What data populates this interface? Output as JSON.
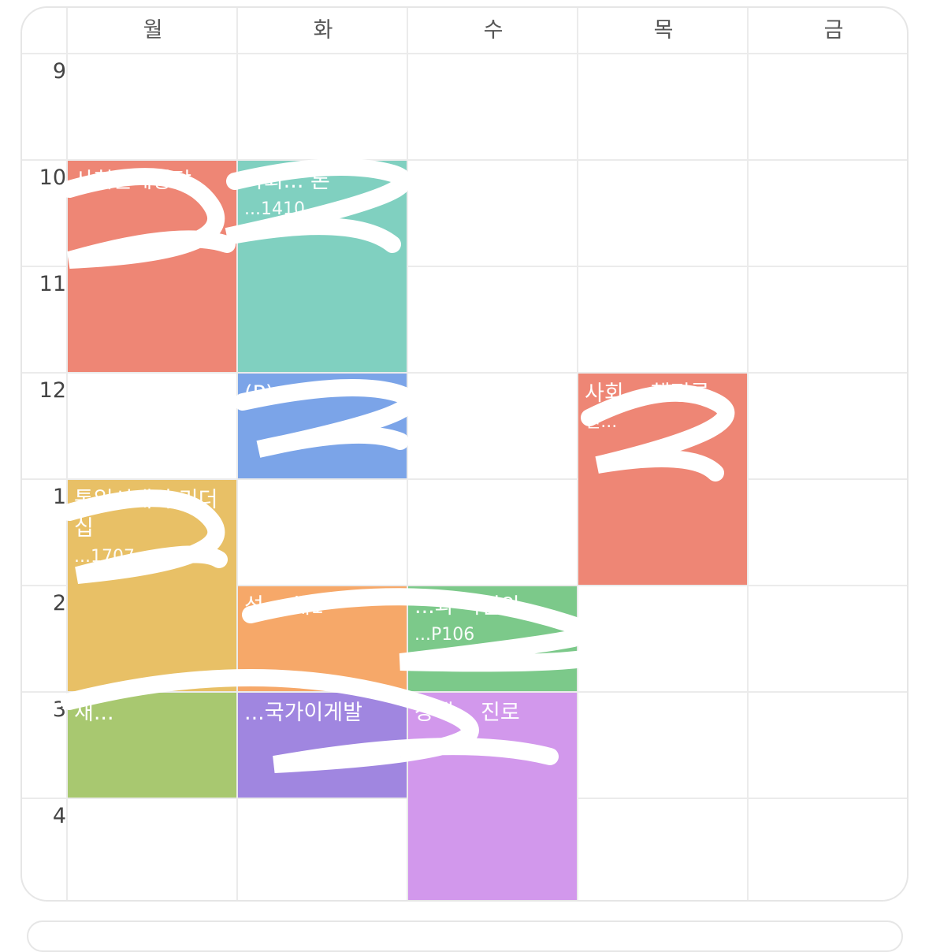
{
  "days": [
    "월",
    "화",
    "수",
    "목",
    "금"
  ],
  "hours": [
    "9",
    "10",
    "11",
    "12",
    "1",
    "2",
    "3",
    "4"
  ],
  "events": [
    {
      "day": 0,
      "start": 10,
      "end": 12,
      "title": "사회문제상담",
      "room": "",
      "color": "#EE8675"
    },
    {
      "day": 1,
      "start": 10,
      "end": 12,
      "title": "사회... 론",
      "room": "...1410",
      "color": "#80D0C0"
    },
    {
      "day": 1,
      "start": 12,
      "end": 13,
      "title": "(P)",
      "room": "",
      "color": "#7BA4E8"
    },
    {
      "day": 3,
      "start": 12,
      "end": 14,
      "title": "사회... 행정론",
      "room": "전...",
      "color": "#EE8675"
    },
    {
      "day": 0,
      "start": 13,
      "end": 15,
      "title": "통일시대의 리더십",
      "room": "...1707",
      "color": "#E8C066"
    },
    {
      "day": 1,
      "start": 14,
      "end": 15,
      "title": "성... 해1",
      "room": "",
      "color": "#F6A869"
    },
    {
      "day": 2,
      "start": 14,
      "end": 15,
      "title": "...과 직업의",
      "room": "...P106",
      "color": "#7CC98A"
    },
    {
      "day": 0,
      "start": 15,
      "end": 16,
      "title": "채...",
      "room": "",
      "color": "#A8C870"
    },
    {
      "day": 1,
      "start": 15,
      "end": 16,
      "title": "...국가이게발",
      "room": "",
      "color": "#A086E0"
    },
    {
      "day": 2,
      "start": 15,
      "end": 17,
      "title": "장애... 진로",
      "room": "",
      "color": "#D298EC"
    }
  ]
}
